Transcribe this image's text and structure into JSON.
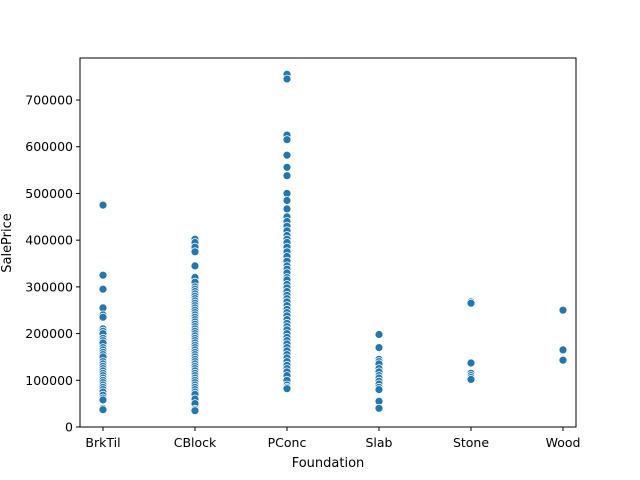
{
  "chart_data": {
    "type": "scatter",
    "xlabel": "Foundation",
    "ylabel": "SalePrice",
    "categories": [
      "BrkTil",
      "CBlock",
      "PConc",
      "Slab",
      "Stone",
      "Wood"
    ],
    "ylim": [
      0,
      790000
    ],
    "yticks": [
      0,
      100000,
      200000,
      300000,
      400000,
      500000,
      600000,
      700000
    ],
    "ytick_labels": [
      "0",
      "100000",
      "200000",
      "300000",
      "400000",
      "500000",
      "600000",
      "700000"
    ],
    "grid": false,
    "marker_color": "#1f77b4",
    "marker_edge": "#ffffff",
    "points": {
      "BrkTil": [
        475000,
        325000,
        295000,
        255000,
        240000,
        235000,
        210000,
        205000,
        200000,
        190000,
        185000,
        180000,
        170000,
        165000,
        160000,
        155000,
        150000,
        140000,
        135000,
        130000,
        125000,
        120000,
        115000,
        110000,
        105000,
        100000,
        95000,
        90000,
        85000,
        80000,
        75000,
        68000,
        62000,
        58000,
        40000,
        37000
      ],
      "CBlock": [
        402000,
        395000,
        385000,
        375000,
        345000,
        320000,
        310000,
        300000,
        295000,
        290000,
        285000,
        280000,
        275000,
        270000,
        265000,
        260000,
        255000,
        250000,
        245000,
        240000,
        235000,
        230000,
        225000,
        220000,
        215000,
        210000,
        205000,
        200000,
        195000,
        190000,
        185000,
        180000,
        175000,
        170000,
        165000,
        160000,
        155000,
        150000,
        145000,
        140000,
        135000,
        130000,
        125000,
        120000,
        115000,
        110000,
        105000,
        100000,
        95000,
        90000,
        85000,
        80000,
        75000,
        70000,
        60000,
        50000,
        38000,
        35000
      ],
      "PConc": [
        755000,
        745000,
        625000,
        615000,
        582000,
        556000,
        538000,
        500000,
        485000,
        467000,
        450000,
        440000,
        430000,
        420000,
        410000,
        402000,
        395000,
        385000,
        375000,
        365000,
        355000,
        345000,
        338000,
        330000,
        320000,
        315000,
        305000,
        298000,
        290000,
        282000,
        275000,
        268000,
        260000,
        252000,
        245000,
        238000,
        230000,
        222000,
        215000,
        208000,
        200000,
        192000,
        185000,
        178000,
        170000,
        163000,
        155000,
        148000,
        140000,
        132000,
        125000,
        118000,
        110000,
        100000,
        90000,
        85000,
        82000
      ],
      "Slab": [
        198000,
        170000,
        145000,
        140000,
        135000,
        125000,
        118000,
        110000,
        105000,
        98000,
        92000,
        85000,
        80000,
        55000,
        40000
      ],
      "Stone": [
        268000,
        265000,
        137000,
        115000,
        110000,
        106000,
        102000
      ],
      "Wood": [
        250000,
        165000,
        145000,
        143000
      ]
    }
  }
}
